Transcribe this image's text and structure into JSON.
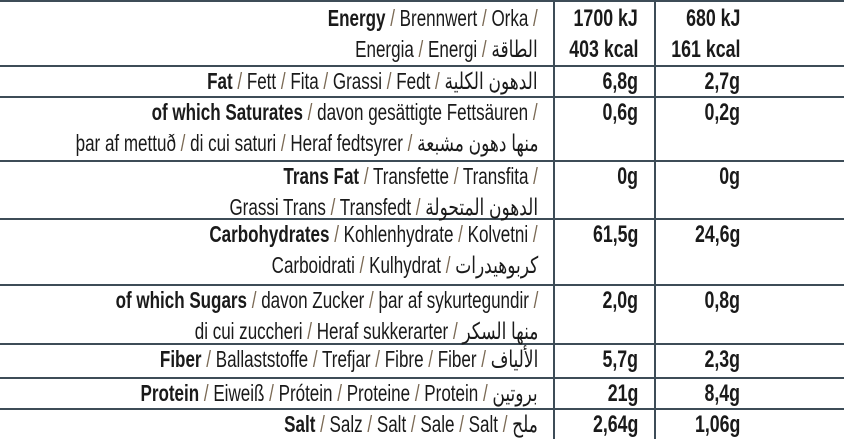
{
  "colors": {
    "rule": "#3d4c57",
    "slash": "#7b6a55",
    "text": "#1a1a1a"
  },
  "rows": [
    {
      "name": "energy",
      "lines": [
        [
          "Energy",
          "Brennwert",
          "Orka"
        ],
        [
          "Energia",
          "Energi",
          "الطاقة"
        ]
      ],
      "col1": [
        "1700 kJ",
        "403 kcal"
      ],
      "col2": [
        "680 kJ",
        "161 kcal"
      ]
    },
    {
      "name": "fat",
      "lines": [
        [
          "Fat",
          "Fett",
          "Fita",
          "Grassi",
          "Fedt",
          "الدهون الكلية"
        ]
      ],
      "col1": [
        "6,8g"
      ],
      "col2": [
        "2,7g"
      ]
    },
    {
      "name": "saturates",
      "lines": [
        [
          "of which Saturates",
          "davon gesättigte Fettsäuren"
        ],
        [
          "þar af mettuð",
          "di cui saturi",
          "Heraf fedtsyrer",
          "منها دهون مشبعة"
        ]
      ],
      "col1": [
        "0,6g"
      ],
      "col2": [
        "0,2g"
      ]
    },
    {
      "name": "trans-fat",
      "lines": [
        [
          "Trans Fat",
          "Transfette",
          "Transfita"
        ],
        [
          "Grassi Trans",
          "Transfedt",
          "الدهون المتحولة"
        ]
      ],
      "col1": [
        "0g"
      ],
      "col2": [
        "0g"
      ]
    },
    {
      "name": "carbohydrates",
      "lines": [
        [
          "Carbohydrates",
          "Kohlenhydrate",
          "Kolvetni"
        ],
        [
          "Carboidrati",
          "Kulhydrat",
          "كربوهيدرات"
        ]
      ],
      "col1": [
        "61,5g"
      ],
      "col2": [
        "24,6g"
      ]
    },
    {
      "name": "sugars",
      "lines": [
        [
          "of which Sugars",
          "davon Zucker",
          "þar af sykurtegundir"
        ],
        [
          "di cui zuccheri",
          "Heraf sukkerarter",
          "منها السكر"
        ]
      ],
      "col1": [
        "2,0g"
      ],
      "col2": [
        "0,8g"
      ]
    },
    {
      "name": "fiber",
      "lines": [
        [
          "Fiber",
          "Ballaststoffe",
          "Trefjar",
          "Fibre",
          "Fiber",
          "الألياف"
        ]
      ],
      "col1": [
        "5,7g"
      ],
      "col2": [
        "2,3g"
      ]
    },
    {
      "name": "protein",
      "lines": [
        [
          "Protein",
          "Eiweiß",
          "Prótein",
          "Proteine",
          "Protein",
          "بروتين"
        ]
      ],
      "col1": [
        "21g"
      ],
      "col2": [
        "8,4g"
      ]
    },
    {
      "name": "salt",
      "lines": [
        [
          "Salt",
          "Salz",
          "Salt",
          "Sale",
          "Salt",
          "ملح"
        ]
      ],
      "col1": [
        "2,64g"
      ],
      "col2": [
        "1,06g"
      ]
    }
  ]
}
